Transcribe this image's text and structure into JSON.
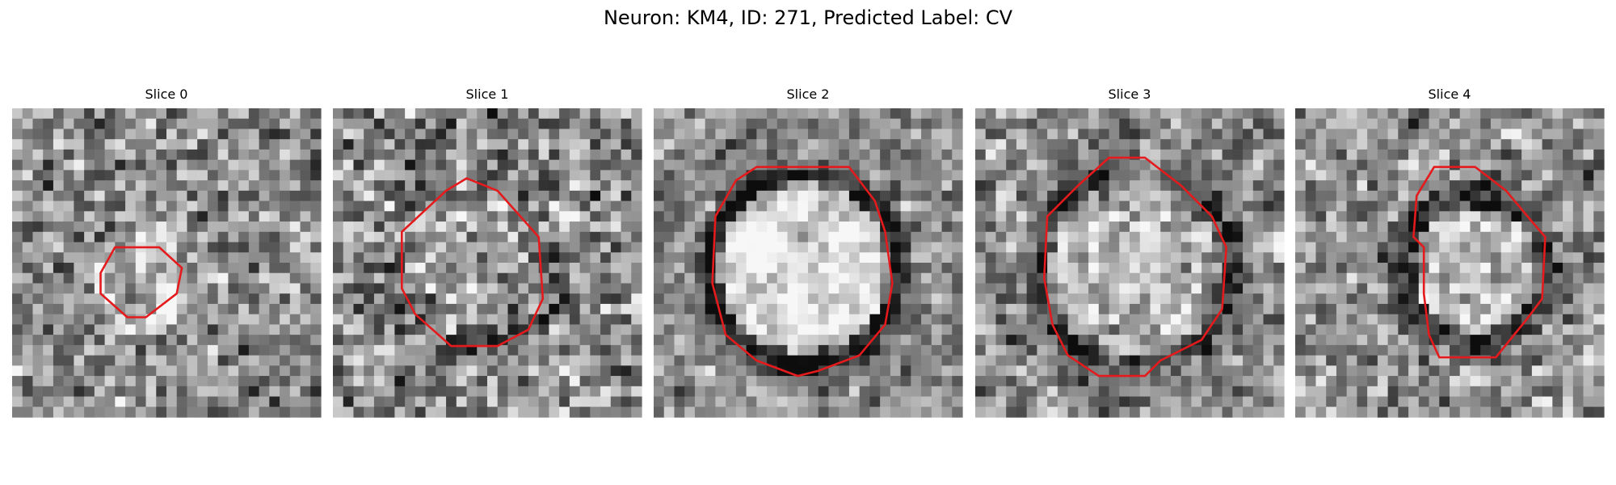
{
  "title": "Neuron: KM4, ID: 271, Predicted Label: CV",
  "panels": [
    {
      "title": "Slice 0"
    },
    {
      "title": "Slice 1"
    },
    {
      "title": "Slice 2"
    },
    {
      "title": "Slice 3"
    },
    {
      "title": "Slice 4"
    }
  ]
}
